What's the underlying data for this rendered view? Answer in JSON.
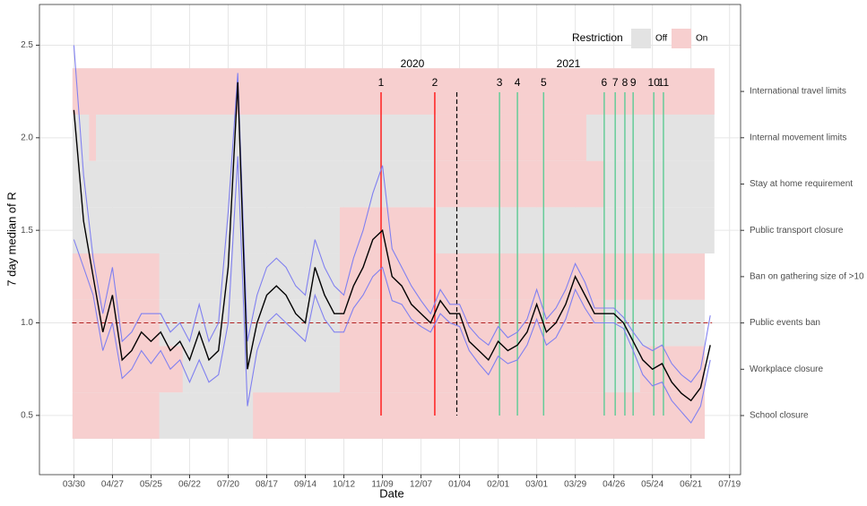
{
  "chart_data": {
    "type": "line",
    "x_label": "Date",
    "y_label": "7 day median of R",
    "xlim": [
      -25,
      484
    ],
    "ylim": [
      0.18,
      2.72
    ],
    "xticks": [
      {
        "value": 0,
        "label": "03/30"
      },
      {
        "value": 28,
        "label": "04/27"
      },
      {
        "value": 56,
        "label": "05/25"
      },
      {
        "value": 84,
        "label": "06/22"
      },
      {
        "value": 112,
        "label": "07/20"
      },
      {
        "value": 140,
        "label": "08/17"
      },
      {
        "value": 168,
        "label": "09/14"
      },
      {
        "value": 196,
        "label": "10/12"
      },
      {
        "value": 224,
        "label": "11/09"
      },
      {
        "value": 252,
        "label": "12/07"
      },
      {
        "value": 280,
        "label": "01/04"
      },
      {
        "value": 308,
        "label": "02/01"
      },
      {
        "value": 336,
        "label": "03/01"
      },
      {
        "value": 364,
        "label": "03/29"
      },
      {
        "value": 392,
        "label": "04/26"
      },
      {
        "value": 420,
        "label": "05/24"
      },
      {
        "value": 448,
        "label": "06/21"
      },
      {
        "value": 476,
        "label": "07/19"
      }
    ],
    "yticks": [
      {
        "value": 0.5,
        "label": "0.5"
      },
      {
        "value": 1.0,
        "label": "1.0"
      },
      {
        "value": 1.5,
        "label": "1.5"
      },
      {
        "value": 2.0,
        "label": "2.0"
      },
      {
        "value": 2.5,
        "label": "2.5"
      }
    ],
    "grid": true,
    "x": [
      0,
      7,
      14,
      21,
      28,
      35,
      42,
      49,
      56,
      63,
      70,
      77,
      84,
      91,
      98,
      105,
      112,
      119,
      126,
      133,
      140,
      147,
      154,
      161,
      168,
      175,
      182,
      189,
      196,
      203,
      210,
      217,
      224,
      231,
      238,
      245,
      252,
      259,
      266,
      273,
      280,
      287,
      294,
      301,
      308,
      315,
      322,
      329,
      336,
      343,
      350,
      357,
      364,
      371,
      378,
      385,
      392,
      399,
      406,
      413,
      420,
      427,
      434,
      441,
      448,
      455,
      462
    ],
    "series": [
      {
        "color": "#8080f0",
        "values": [
          2.5,
          1.8,
          1.35,
          1.05,
          1.3,
          0.9,
          0.95,
          1.05,
          1.05,
          1.05,
          0.95,
          1.0,
          0.9,
          1.1,
          0.9,
          1.0,
          1.6,
          2.35,
          0.9,
          1.15,
          1.3,
          1.35,
          1.3,
          1.2,
          1.15,
          1.45,
          1.3,
          1.2,
          1.15,
          1.35,
          1.5,
          1.7,
          1.85,
          1.4,
          1.3,
          1.2,
          1.12,
          1.05,
          1.18,
          1.1,
          1.1,
          0.98,
          0.92,
          0.88,
          0.98,
          0.92,
          0.95,
          1.02,
          1.18,
          1.02,
          1.08,
          1.18,
          1.32,
          1.22,
          1.08,
          1.08,
          1.08,
          1.03,
          0.95,
          0.88,
          0.85,
          0.88,
          0.78,
          0.72,
          0.68,
          0.75,
          1.04
        ]
      },
      {
        "color": "#8080f0",
        "values": [
          1.45,
          1.3,
          1.15,
          0.85,
          1.0,
          0.7,
          0.75,
          0.85,
          0.78,
          0.85,
          0.75,
          0.8,
          0.68,
          0.8,
          0.68,
          0.72,
          1.0,
          1.9,
          0.55,
          0.85,
          1.0,
          1.05,
          1.0,
          0.95,
          0.9,
          1.15,
          1.02,
          0.95,
          0.95,
          1.08,
          1.15,
          1.25,
          1.3,
          1.12,
          1.1,
          1.02,
          0.98,
          0.95,
          1.05,
          1.0,
          0.98,
          0.85,
          0.78,
          0.72,
          0.82,
          0.78,
          0.8,
          0.88,
          1.02,
          0.88,
          0.92,
          1.02,
          1.18,
          1.08,
          1.0,
          1.0,
          1.0,
          0.97,
          0.85,
          0.72,
          0.66,
          0.68,
          0.58,
          0.52,
          0.46,
          0.55,
          0.8
        ]
      },
      {
        "color": "#000000",
        "values": [
          2.15,
          1.55,
          1.25,
          0.95,
          1.15,
          0.8,
          0.85,
          0.95,
          0.9,
          0.95,
          0.85,
          0.9,
          0.8,
          0.95,
          0.8,
          0.85,
          1.3,
          2.3,
          0.75,
          1.0,
          1.15,
          1.2,
          1.15,
          1.05,
          1.0,
          1.3,
          1.15,
          1.05,
          1.05,
          1.2,
          1.3,
          1.45,
          1.5,
          1.25,
          1.2,
          1.1,
          1.05,
          1.0,
          1.12,
          1.05,
          1.05,
          0.9,
          0.85,
          0.8,
          0.9,
          0.85,
          0.88,
          0.95,
          1.1,
          0.95,
          1.0,
          1.1,
          1.25,
          1.15,
          1.05,
          1.05,
          1.05,
          1.0,
          0.9,
          0.8,
          0.75,
          0.78,
          0.68,
          0.62,
          0.58,
          0.65,
          0.88
        ]
      }
    ],
    "reference_line": {
      "value": 1.0,
      "color": "#b22222"
    },
    "year_boundary": 278,
    "year_labels": [
      "2020",
      "2021"
    ],
    "events": [
      {
        "label": "1",
        "x": 223,
        "color": "#ff2020"
      },
      {
        "label": "2",
        "x": 262,
        "color": "#ff2020"
      },
      {
        "label": "3",
        "x": 309,
        "color": "#66cc99"
      },
      {
        "label": "4",
        "x": 322,
        "color": "#66cc99"
      },
      {
        "label": "5",
        "x": 341,
        "color": "#66cc99"
      },
      {
        "label": "6",
        "x": 385,
        "color": "#66cc99"
      },
      {
        "label": "7",
        "x": 393,
        "color": "#66cc99"
      },
      {
        "label": "8",
        "x": 400,
        "color": "#66cc99"
      },
      {
        "label": "9",
        "x": 406,
        "color": "#66cc99"
      },
      {
        "label": "10",
        "x": 421,
        "color": "#66cc99"
      },
      {
        "label": "11",
        "x": 428,
        "color": "#66cc99"
      }
    ],
    "legend": {
      "title": "Restriction",
      "items": [
        {
          "label": "Off",
          "color": "#e3e3e3"
        },
        {
          "label": "On",
          "color": "#f7cfcf"
        }
      ]
    },
    "restrictions": [
      {
        "name": "School closure",
        "span": [
          -1,
          458
        ],
        "on": [
          [
            -1,
            62
          ],
          [
            130,
            458
          ]
        ]
      },
      {
        "name": "Workplace closure",
        "span": [
          -1,
          458
        ],
        "on": [
          [
            -1,
            79
          ],
          [
            193,
            385
          ],
          [
            411,
            458
          ]
        ]
      },
      {
        "name": "Public events ban",
        "span": [
          -1,
          458
        ],
        "on": [
          [
            -1,
            62
          ],
          [
            193,
            385
          ]
        ]
      },
      {
        "name": "Ban on gathering size of >10",
        "span": [
          -1,
          458
        ],
        "on": [
          [
            -1,
            62
          ],
          [
            193,
            458
          ]
        ]
      },
      {
        "name": "Public transport closure",
        "span": [
          -1,
          465
        ],
        "on": [
          [
            193,
            263
          ]
        ]
      },
      {
        "name": "Stay at home requirement",
        "span": [
          -1,
          465
        ],
        "on": [
          [
            263,
            385
          ]
        ]
      },
      {
        "name": "Internal movement limits",
        "span": [
          -1,
          465
        ],
        "on": [
          [
            11,
            16
          ],
          [
            263,
            372
          ]
        ]
      },
      {
        "name": "International travel limits",
        "span": [
          -1,
          465
        ],
        "on": [
          [
            -1,
            465
          ]
        ]
      }
    ]
  }
}
